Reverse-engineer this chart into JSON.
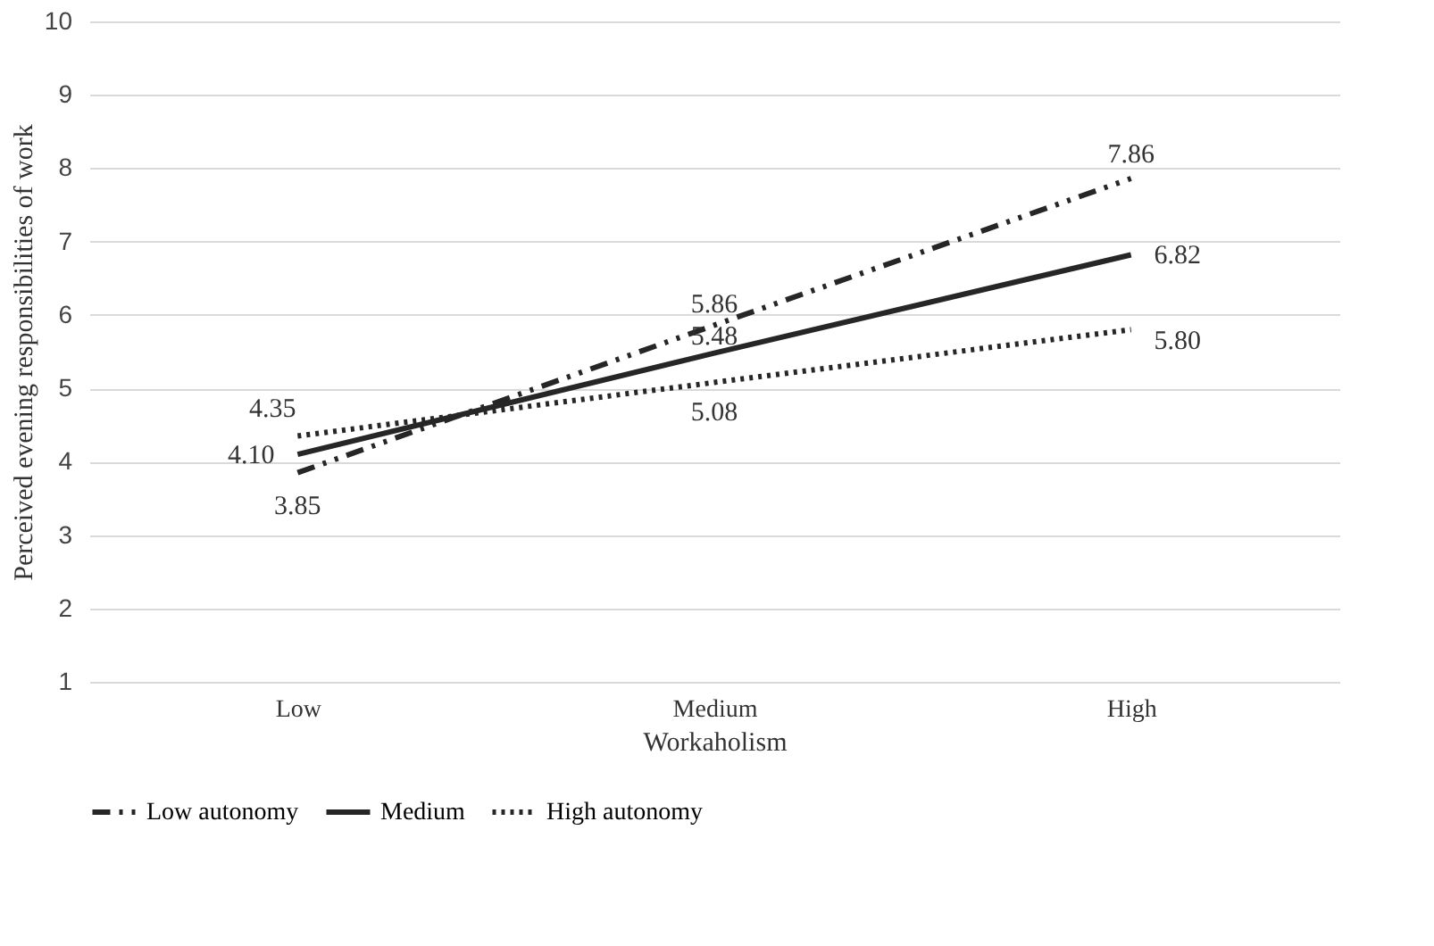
{
  "chart_data": {
    "type": "line",
    "xlabel": "Workaholism",
    "ylabel": "Perceived evening responsibilities of work",
    "categories": [
      "Low",
      "Medium",
      "High"
    ],
    "series": [
      {
        "name": "Low autonomy",
        "color": "#262626",
        "line_style": "dashed",
        "values": [
          3.85,
          5.86,
          7.86
        ],
        "value_labels": [
          "3.85",
          "5.86",
          "7.86"
        ]
      },
      {
        "name": "Medium",
        "color": "#262626",
        "line_style": "solid",
        "values": [
          4.1,
          5.48,
          6.82
        ],
        "value_labels": [
          "4.10",
          "5.48",
          "6.82"
        ]
      },
      {
        "name": "High autonomy",
        "color": "#262626",
        "line_style": "dotted",
        "values": [
          4.35,
          5.08,
          5.8
        ],
        "value_labels": [
          "4.35",
          "5.08",
          "5.80"
        ]
      }
    ],
    "ylim": [
      1,
      10
    ],
    "yticks": [
      1,
      2,
      3,
      4,
      5,
      6,
      7,
      8,
      9,
      10
    ],
    "grid": "y",
    "legend": "bottom",
    "marker": "none"
  }
}
